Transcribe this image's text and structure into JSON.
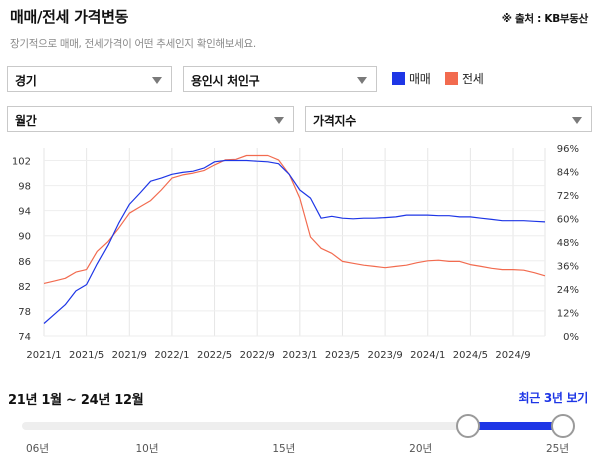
{
  "header": {
    "title": "매매/전세 가격변동",
    "source": "※ 출처 : KB부동산",
    "subtitle": "장기적으로 매매, 전세가격이 어떤 추세인지 확인해보세요."
  },
  "filters": {
    "region": "경기",
    "city": "용인시 처인구",
    "period": "월간",
    "metric": "가격지수"
  },
  "legend": {
    "maemae": {
      "label": "매매",
      "color": "#1e36e6"
    },
    "jeonse": {
      "label": "전세",
      "color": "#f26b4f"
    }
  },
  "chart_data": {
    "type": "line",
    "x": [
      "2021/1",
      "2021/2",
      "2021/3",
      "2021/4",
      "2021/5",
      "2021/6",
      "2021/7",
      "2021/8",
      "2021/9",
      "2021/10",
      "2021/11",
      "2021/12",
      "2022/1",
      "2022/2",
      "2022/3",
      "2022/4",
      "2022/5",
      "2022/6",
      "2022/7",
      "2022/8",
      "2022/9",
      "2022/10",
      "2022/11",
      "2022/12",
      "2023/1",
      "2023/2",
      "2023/3",
      "2023/4",
      "2023/5",
      "2023/6",
      "2023/7",
      "2023/8",
      "2023/9",
      "2023/10",
      "2023/11",
      "2023/12",
      "2024/1",
      "2024/2",
      "2024/3",
      "2024/4",
      "2024/5",
      "2024/6",
      "2024/7",
      "2024/8",
      "2024/9",
      "2024/10",
      "2024/11",
      "2024/12"
    ],
    "x_tick_labels": [
      "2021/1",
      "2021/5",
      "2021/9",
      "2022/1",
      "2022/5",
      "2022/9",
      "2023/1",
      "2023/5",
      "2023/9",
      "2024/1",
      "2024/5",
      "2024/9"
    ],
    "series": [
      {
        "name": "매매",
        "axis": "left",
        "color": "#1e36e6",
        "values": [
          76.0,
          77.5,
          79.0,
          81.2,
          82.2,
          85.5,
          88.5,
          92.0,
          95.0,
          96.8,
          98.7,
          99.2,
          99.8,
          100.1,
          100.3,
          100.8,
          101.8,
          102.0,
          102.0,
          102.0,
          101.9,
          101.8,
          101.5,
          99.8,
          97.3,
          96.0,
          92.8,
          93.1,
          92.8,
          92.7,
          92.8,
          92.8,
          92.9,
          93.0,
          93.3,
          93.3,
          93.3,
          93.2,
          93.2,
          93.0,
          93.0,
          92.8,
          92.6,
          92.4,
          92.4,
          92.4,
          92.3,
          92.2
        ]
      },
      {
        "name": "전세",
        "axis": "left",
        "color": "#f26b4f",
        "values": [
          82.4,
          82.8,
          83.2,
          84.2,
          84.6,
          87.5,
          89.1,
          91.2,
          93.6,
          94.6,
          95.6,
          97.3,
          99.2,
          99.7,
          100.0,
          100.4,
          101.3,
          102.1,
          102.2,
          102.8,
          102.8,
          102.8,
          102.1,
          99.8,
          96.0,
          89.8,
          88.0,
          87.2,
          85.9,
          85.6,
          85.3,
          85.1,
          84.9,
          85.1,
          85.3,
          85.7,
          86.0,
          86.1,
          85.9,
          85.9,
          85.4,
          85.1,
          84.8,
          84.6,
          84.6,
          84.5,
          84.1,
          83.6
        ]
      }
    ],
    "ylim_left": [
      74,
      104
    ],
    "yticks_left": [
      74,
      78,
      82,
      86,
      90,
      94,
      98,
      102
    ],
    "yticks_right": [
      "0%",
      "12%",
      "24%",
      "36%",
      "48%",
      "60%",
      "72%",
      "84%",
      "96%"
    ],
    "grid": true
  },
  "range": {
    "label": "21년 1월 ~ 24년 12월",
    "recent_button": "최근 3년 보기",
    "ticks": [
      "06년",
      "10년",
      "15년",
      "20년",
      "25년"
    ],
    "start_year": 2021,
    "end_year": 2025,
    "min_year": 2006,
    "max_year": 2025
  }
}
